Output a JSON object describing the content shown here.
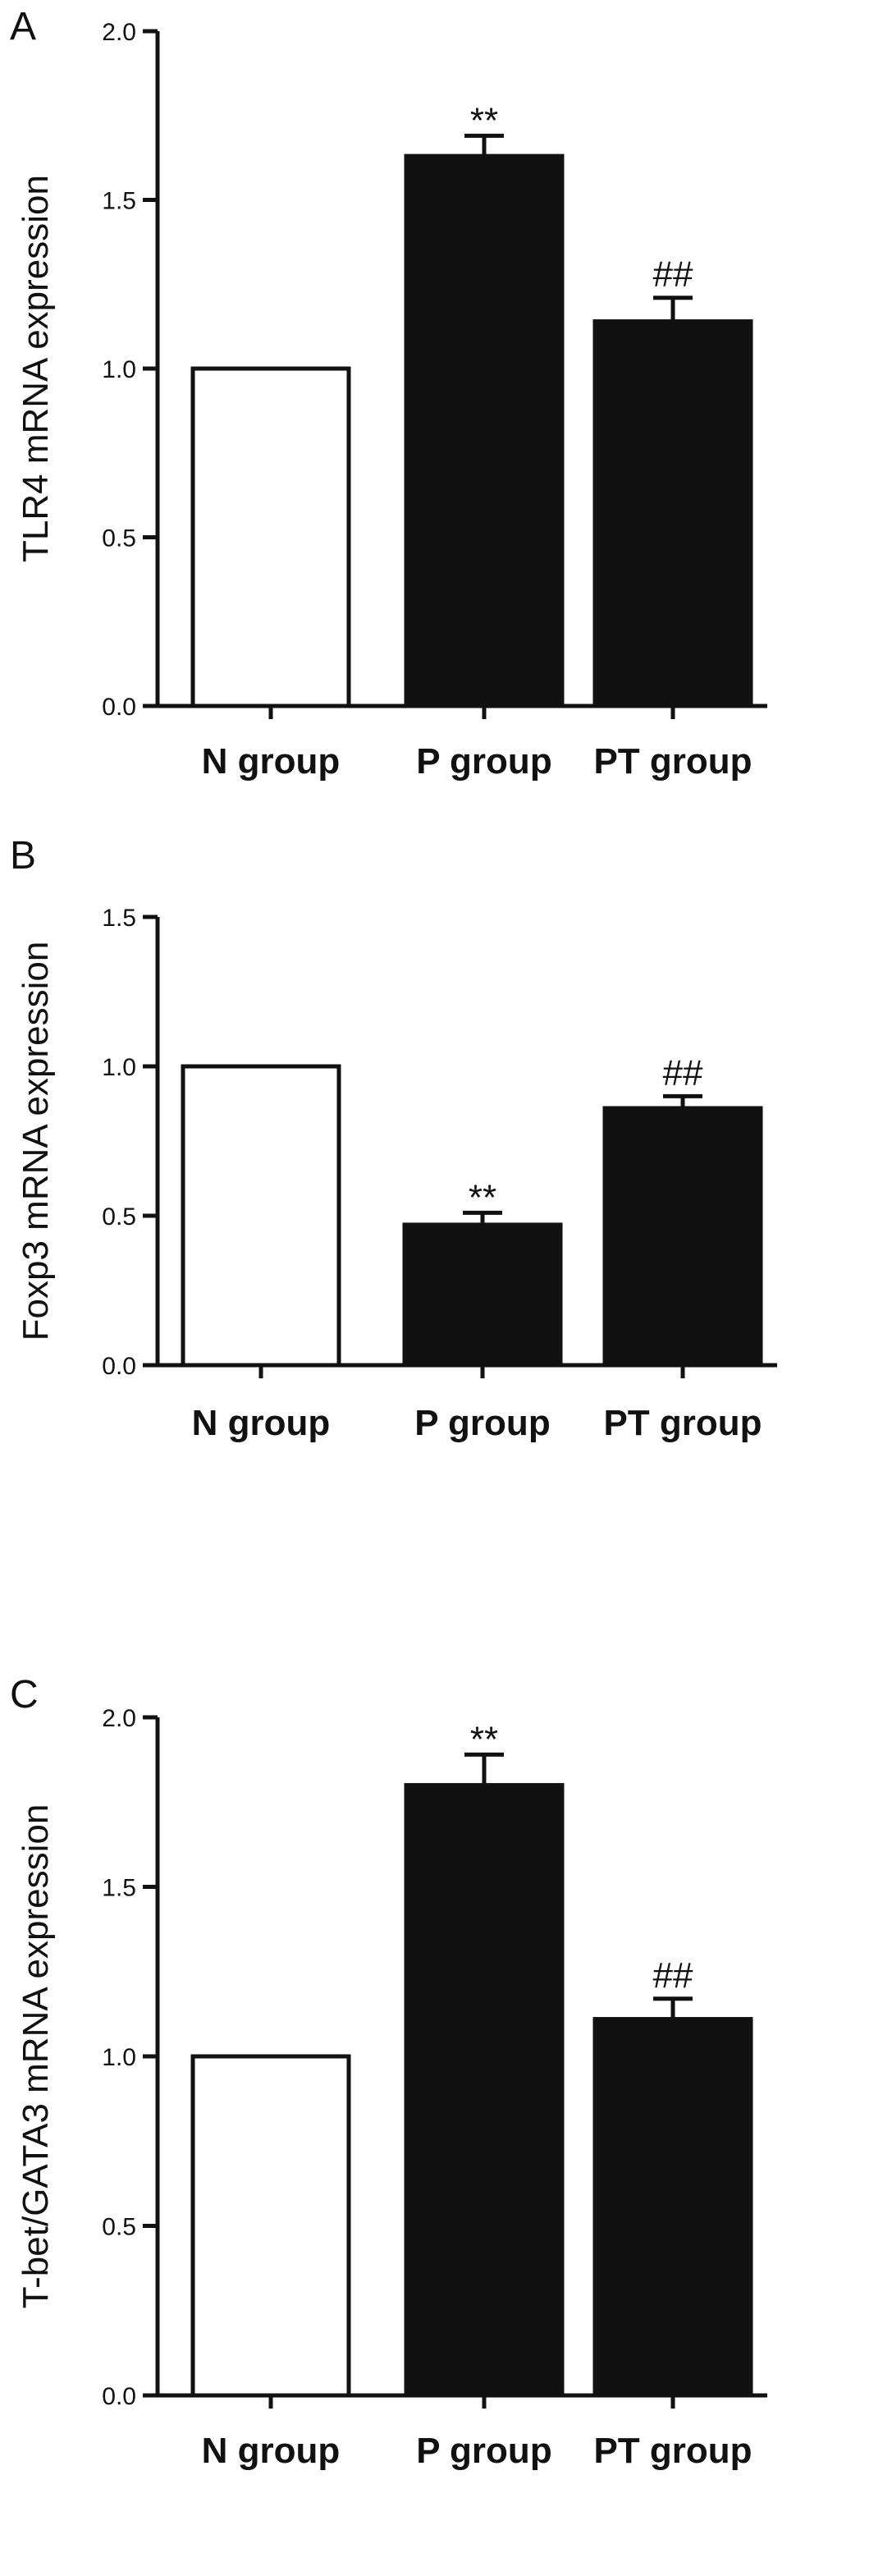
{
  "chart_data": [
    {
      "type": "bar",
      "panel": "A",
      "ylabel": "TLR4 mRNA expression",
      "ylim": [
        0,
        2.0
      ],
      "yticks": [
        "0.0",
        "0.5",
        "1.0",
        "1.5",
        "2.0"
      ],
      "categories": [
        "N group",
        "P group",
        "PT group"
      ],
      "values": [
        1.0,
        1.63,
        1.14
      ],
      "errors": [
        0,
        0.06,
        0.07
      ],
      "annotations": [
        "",
        "**",
        "##"
      ],
      "fills": [
        "#ffffff",
        "#111111",
        "#111111"
      ]
    },
    {
      "type": "bar",
      "panel": "B",
      "ylabel": "Foxp3 mRNA expression",
      "ylim": [
        0,
        1.5
      ],
      "yticks": [
        "0.0",
        "0.5",
        "1.0",
        "1.5"
      ],
      "categories": [
        "N group",
        "P group",
        "PT group"
      ],
      "values": [
        1.0,
        0.47,
        0.86
      ],
      "errors": [
        0,
        0.04,
        0.04
      ],
      "annotations": [
        "",
        "**",
        "##"
      ],
      "fills": [
        "#ffffff",
        "#111111",
        "#111111"
      ]
    },
    {
      "type": "bar",
      "panel": "C",
      "ylabel": "T-bet/GATA3 mRNA expression",
      "ylim": [
        0,
        2.0
      ],
      "yticks": [
        "0.0",
        "0.5",
        "1.0",
        "1.5",
        "2.0"
      ],
      "categories": [
        "N group",
        "P group",
        "PT group"
      ],
      "values": [
        1.0,
        1.8,
        1.11
      ],
      "errors": [
        0,
        0.09,
        0.06
      ],
      "annotations": [
        "",
        "**",
        "##"
      ],
      "fills": [
        "#ffffff",
        "#111111",
        "#111111"
      ]
    }
  ]
}
